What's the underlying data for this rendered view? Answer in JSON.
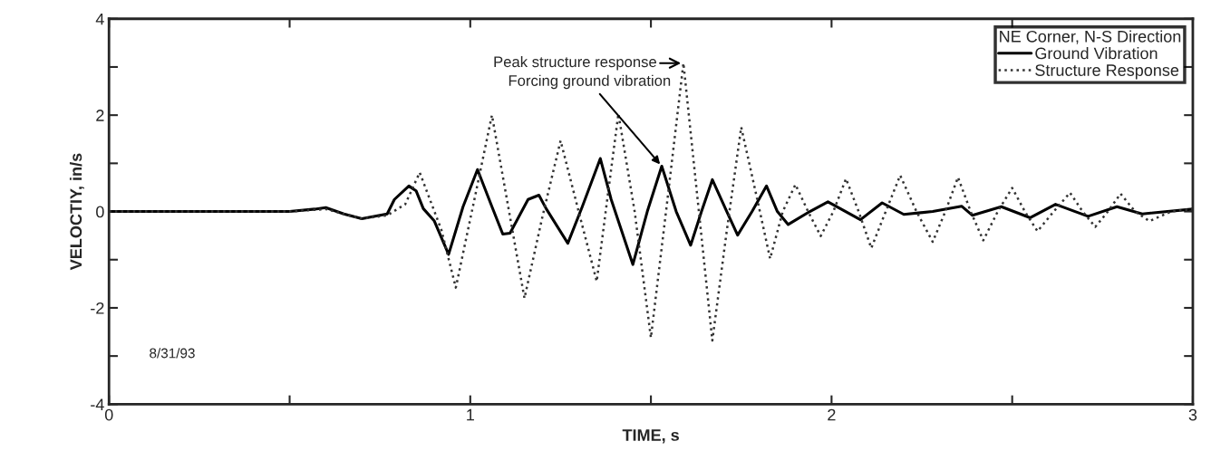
{
  "chart_data": {
    "type": "line",
    "xlabel": "TIME, s",
    "ylabel": "VELOCTIY, in/s",
    "legend_title": "NE Corner, N-S Direction",
    "legend": "top right",
    "grid": false,
    "xlim": [
      0,
      3
    ],
    "ylim": [
      -4,
      4
    ],
    "xticks": [
      0,
      {
        "value": 0.5,
        "label": null
      },
      1,
      {
        "value": 1.5,
        "label": null
      },
      2,
      {
        "value": 2.5,
        "label": null
      },
      3
    ],
    "yticks": [
      -4,
      {
        "value": -3,
        "label": null
      },
      -2,
      {
        "value": -1,
        "label": null
      },
      0,
      {
        "value": 1,
        "label": null
      },
      2,
      {
        "value": 3,
        "label": null
      },
      4
    ],
    "series": [
      {
        "name": "Ground Vibration",
        "color": "#000000",
        "line_style": "solid",
        "x": [
          0,
          0.5,
          0.57,
          0.6,
          0.65,
          0.7,
          0.77,
          0.79,
          0.83,
          0.85,
          0.87,
          0.9,
          0.94,
          0.98,
          1.02,
          1.06,
          1.09,
          1.11,
          1.16,
          1.19,
          1.21,
          1.27,
          1.31,
          1.36,
          1.39,
          1.45,
          1.49,
          1.53,
          1.57,
          1.61,
          1.64,
          1.67,
          1.71,
          1.74,
          1.78,
          1.82,
          1.85,
          1.88,
          1.94,
          1.99,
          2.08,
          2.14,
          2.2,
          2.28,
          2.36,
          2.39,
          2.47,
          2.55,
          2.62,
          2.71,
          2.79,
          2.86,
          3.0
        ],
        "values": [
          0,
          0,
          0.05,
          0.08,
          -0.05,
          -0.15,
          -0.05,
          0.25,
          0.53,
          0.43,
          0.06,
          -0.19,
          -0.89,
          0.1,
          0.87,
          0.1,
          -0.47,
          -0.45,
          0.25,
          0.34,
          0.06,
          -0.66,
          0.1,
          1.1,
          0.25,
          -1.1,
          0.0,
          0.94,
          0.0,
          -0.7,
          0.0,
          0.66,
          0.0,
          -0.49,
          0.0,
          0.53,
          0.0,
          -0.27,
          0.0,
          0.2,
          -0.17,
          0.18,
          -0.06,
          0.0,
          0.11,
          -0.08,
          0.1,
          -0.13,
          0.15,
          -0.1,
          0.1,
          -0.05,
          0.05
        ]
      },
      {
        "name": "Structure Response",
        "color": "#333333",
        "line_style": "dotted",
        "x": [
          0,
          0.5,
          0.6,
          0.7,
          0.77,
          0.82,
          0.86,
          0.92,
          0.96,
          1.01,
          1.06,
          1.105,
          1.15,
          1.2,
          1.25,
          1.3,
          1.35,
          1.38,
          1.41,
          1.455,
          1.5,
          1.545,
          1.59,
          1.63,
          1.67,
          1.71,
          1.75,
          1.79,
          1.83,
          1.865,
          1.9,
          1.935,
          1.97,
          2.005,
          2.04,
          2.075,
          2.11,
          2.15,
          2.19,
          2.235,
          2.28,
          2.315,
          2.35,
          2.385,
          2.42,
          2.46,
          2.5,
          2.535,
          2.57,
          2.615,
          2.66,
          2.695,
          2.73,
          2.765,
          2.8,
          2.84,
          2.88,
          2.94,
          3.0
        ],
        "values": [
          0,
          0,
          0.05,
          -0.15,
          -0.08,
          0.15,
          0.81,
          -0.38,
          -1.58,
          0.2,
          2.0,
          0.1,
          -1.8,
          -0.1,
          1.47,
          0.0,
          -1.45,
          0.3,
          2.03,
          0.0,
          -2.62,
          0.2,
          3.08,
          0.2,
          -2.68,
          -0.4,
          1.75,
          0.4,
          -0.98,
          0.0,
          0.56,
          0.0,
          -0.51,
          0.0,
          0.68,
          0.0,
          -0.76,
          0.0,
          0.75,
          0.0,
          -0.63,
          0.0,
          0.71,
          0.0,
          -0.6,
          0.0,
          0.49,
          0.0,
          -0.41,
          0.0,
          0.39,
          0.0,
          -0.32,
          0.0,
          0.37,
          0.0,
          -0.2,
          0.0,
          0.05
        ]
      }
    ],
    "annotations": [
      {
        "text": "Peak structure response",
        "x": 1.59,
        "y": 3.08
      },
      {
        "text": "Forcing ground vibration",
        "x": 1.53,
        "y": 0.94
      },
      "8/31/93"
    ]
  }
}
